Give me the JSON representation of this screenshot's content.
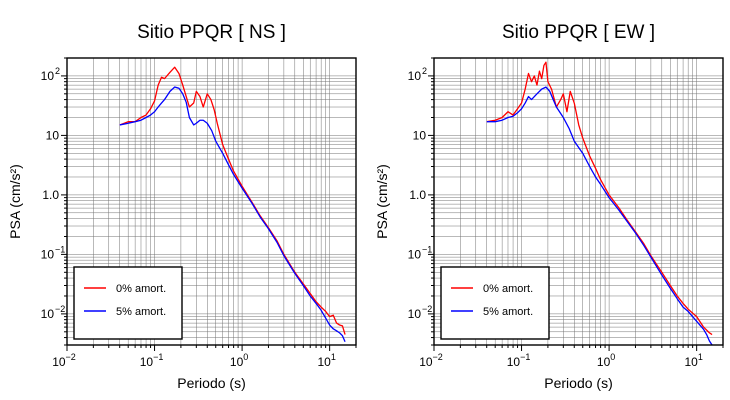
{
  "chart_data": [
    {
      "type": "line",
      "title": "Sitio PPQR [ NS ]",
      "xlabel": "Periodo (s)",
      "ylabel": "PSA (cm/s²)",
      "xscale": "log",
      "yscale": "log",
      "xlim": [
        0.01,
        20
      ],
      "ylim": [
        0.003,
        200
      ],
      "grid": true,
      "legend_position": "bottom-left",
      "series": [
        {
          "name": "0% amort.",
          "color": "#ff0000",
          "x": [
            0.04,
            0.05,
            0.06,
            0.07,
            0.08,
            0.09,
            0.1,
            0.11,
            0.12,
            0.13,
            0.15,
            0.17,
            0.19,
            0.21,
            0.23,
            0.25,
            0.28,
            0.3,
            0.33,
            0.36,
            0.4,
            0.44,
            0.48,
            0.52,
            0.6,
            0.7,
            0.8,
            1.0,
            1.3,
            1.6,
            2.0,
            2.5,
            3.0,
            4.0,
            5.0,
            6.0,
            7.0,
            8.0,
            9.0,
            10.0,
            11.0,
            12.0,
            13.0,
            14.0,
            15.0
          ],
          "y": [
            15,
            17,
            17,
            20,
            22,
            28,
            38,
            70,
            95,
            90,
            115,
            140,
            110,
            70,
            45,
            30,
            35,
            55,
            45,
            30,
            50,
            40,
            27,
            16,
            7,
            4,
            2.5,
            1.4,
            0.75,
            0.45,
            0.28,
            0.17,
            0.1,
            0.05,
            0.032,
            0.022,
            0.016,
            0.013,
            0.011,
            0.009,
            0.0095,
            0.007,
            0.0065,
            0.0063,
            0.0045
          ]
        },
        {
          "name": "5% amort.",
          "color": "#0000ff",
          "x": [
            0.04,
            0.05,
            0.06,
            0.07,
            0.08,
            0.09,
            0.1,
            0.11,
            0.12,
            0.13,
            0.15,
            0.17,
            0.19,
            0.21,
            0.23,
            0.25,
            0.28,
            0.3,
            0.33,
            0.36,
            0.4,
            0.45,
            0.5,
            0.6,
            0.7,
            0.8,
            1.0,
            1.3,
            1.6,
            2.0,
            2.5,
            3.0,
            4.0,
            5.0,
            6.0,
            7.0,
            8.0,
            9.0,
            10.0,
            11.0,
            12.0,
            13.0,
            14.0,
            15.0
          ],
          "y": [
            15,
            16,
            17,
            18,
            20,
            22,
            25,
            30,
            35,
            40,
            55,
            65,
            62,
            50,
            36,
            20,
            15,
            16,
            18,
            18,
            16,
            12,
            8,
            5,
            3.2,
            2.2,
            1.3,
            0.72,
            0.43,
            0.27,
            0.16,
            0.095,
            0.048,
            0.03,
            0.02,
            0.015,
            0.0115,
            0.0085,
            0.0065,
            0.0056,
            0.0052,
            0.0048,
            0.0043,
            0.0034
          ]
        }
      ]
    },
    {
      "type": "line",
      "title": "Sitio PPQR [ EW ]",
      "xlabel": "Periodo (s)",
      "ylabel": "PSA (cm/s²)",
      "xscale": "log",
      "yscale": "log",
      "xlim": [
        0.01,
        20
      ],
      "ylim": [
        0.003,
        200
      ],
      "grid": true,
      "legend_position": "bottom-left",
      "series": [
        {
          "name": "0% amort.",
          "color": "#ff0000",
          "x": [
            0.04,
            0.05,
            0.06,
            0.07,
            0.08,
            0.09,
            0.1,
            0.11,
            0.12,
            0.13,
            0.14,
            0.15,
            0.16,
            0.17,
            0.18,
            0.19,
            0.2,
            0.22,
            0.25,
            0.28,
            0.3,
            0.33,
            0.36,
            0.4,
            0.45,
            0.5,
            0.6,
            0.7,
            0.8,
            1.0,
            1.3,
            1.6,
            2.0,
            2.5,
            3.0,
            4.0,
            5.0,
            6.0,
            7.0,
            8.0,
            10.0,
            12.0,
            14.0,
            15.0
          ],
          "y": [
            17,
            18,
            20,
            25,
            22,
            28,
            35,
            60,
            110,
            80,
            100,
            70,
            120,
            90,
            150,
            170,
            80,
            60,
            30,
            40,
            50,
            25,
            55,
            35,
            15,
            9,
            4.5,
            2.8,
            1.8,
            1.0,
            0.6,
            0.38,
            0.24,
            0.15,
            0.095,
            0.05,
            0.03,
            0.02,
            0.015,
            0.012,
            0.009,
            0.006,
            0.0048,
            0.0045
          ]
        },
        {
          "name": "5% amort.",
          "color": "#0000ff",
          "x": [
            0.04,
            0.05,
            0.06,
            0.07,
            0.08,
            0.09,
            0.1,
            0.11,
            0.12,
            0.13,
            0.15,
            0.17,
            0.19,
            0.21,
            0.23,
            0.25,
            0.3,
            0.35,
            0.4,
            0.5,
            0.6,
            0.7,
            0.8,
            1.0,
            1.3,
            1.6,
            2.0,
            2.5,
            3.0,
            4.0,
            5.0,
            6.0,
            7.0,
            8.0,
            10.0,
            12.0,
            13.0,
            14.0,
            15.0
          ],
          "y": [
            17,
            17,
            18,
            20,
            21,
            24,
            28,
            35,
            45,
            40,
            50,
            60,
            65,
            55,
            40,
            30,
            20,
            13,
            8,
            5,
            3,
            2,
            1.5,
            0.9,
            0.55,
            0.36,
            0.23,
            0.14,
            0.09,
            0.045,
            0.027,
            0.018,
            0.013,
            0.011,
            0.0075,
            0.0055,
            0.0045,
            0.0035,
            0.003
          ]
        }
      ]
    }
  ]
}
